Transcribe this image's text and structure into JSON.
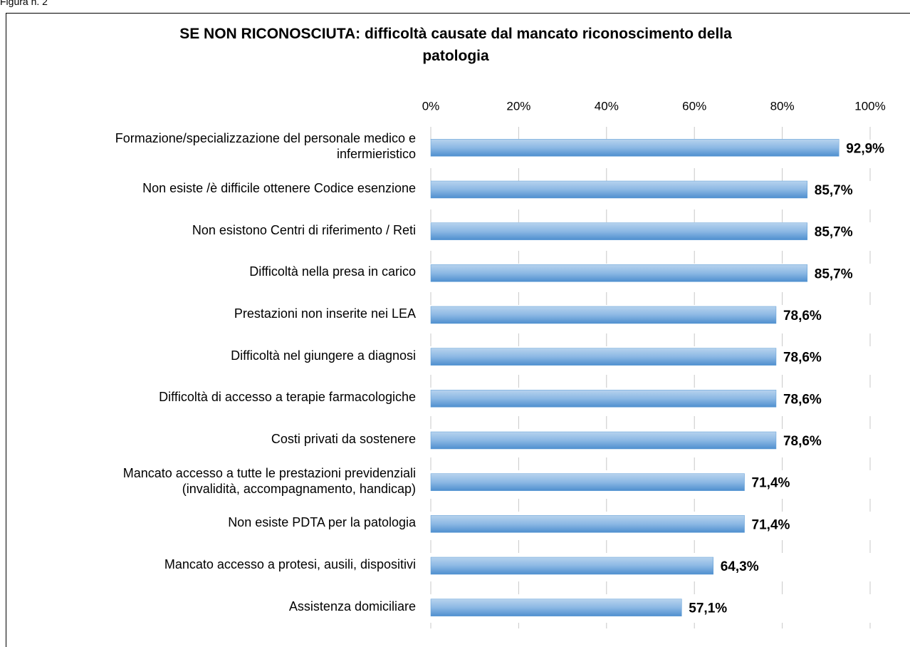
{
  "figure_label": "Figura n. 2",
  "chart_data": {
    "type": "barh",
    "title": "SE NON RICONOSCIUTA: difficoltà causate dal mancato riconoscimento della\npatologia",
    "categories": [
      "Formazione/specializzazione del personale medico e\ninfermieristico",
      "Non esiste /è difficile ottenere Codice esenzione",
      "Non esistono Centri di riferimento / Reti",
      "Difficoltà nella presa in carico",
      "Prestazioni non inserite nei LEA",
      "Difficoltà nel giungere a diagnosi",
      "Difficoltà di accesso a terapie farmacologiche",
      "Costi privati da sostenere",
      "Mancato accesso a tutte le prestazioni previdenziali\n(invalidità, accompagnamento, handicap)",
      "Non esiste PDTA per la patologia",
      "Mancato accesso a protesi, ausili, dispositivi",
      "Assistenza domiciliare"
    ],
    "values": [
      92.9,
      85.7,
      85.7,
      85.7,
      78.6,
      78.6,
      78.6,
      78.6,
      71.4,
      71.4,
      64.3,
      57.1
    ],
    "value_labels": [
      "92,9%",
      "85,7%",
      "85,7%",
      "85,7%",
      "78,6%",
      "78,6%",
      "78,6%",
      "78,6%",
      "71,4%",
      "71,4%",
      "64,3%",
      "57,1%"
    ],
    "color": "#5b9bd5",
    "xlim": [
      0,
      100
    ],
    "xticks": [
      {
        "value": 0,
        "label": "0%"
      },
      {
        "value": 20,
        "label": "20%"
      },
      {
        "value": 40,
        "label": "40%"
      },
      {
        "value": 60,
        "label": "60%"
      },
      {
        "value": 80,
        "label": "80%"
      },
      {
        "value": 100,
        "label": "100%"
      }
    ],
    "grid": true
  }
}
